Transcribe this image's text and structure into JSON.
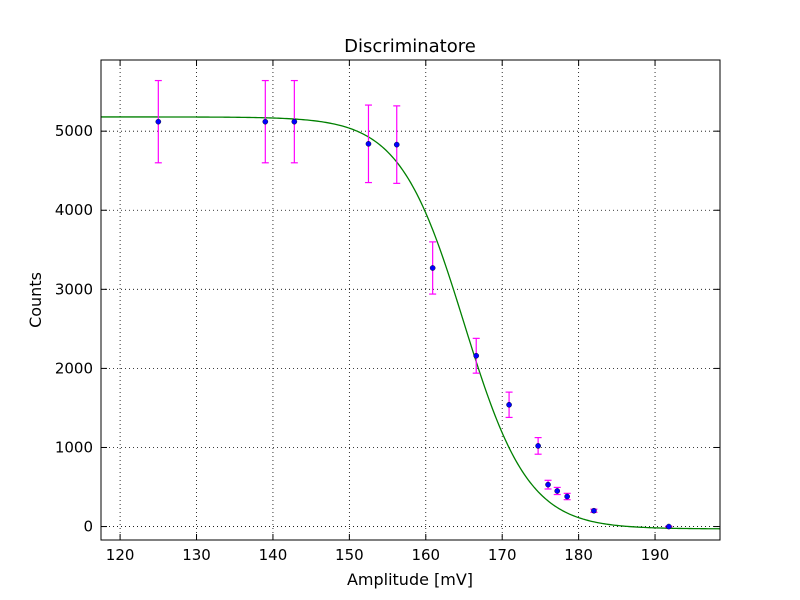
{
  "chart_data": {
    "type": "scatter",
    "title": "Discriminatore",
    "xlabel": "Amplitude [mV]",
    "ylabel": "Counts",
    "xlim": [
      117.5,
      198.5
    ],
    "ylim": [
      -170,
      5900
    ],
    "xticks": [
      120,
      130,
      140,
      150,
      160,
      170,
      180,
      190
    ],
    "yticks": [
      0,
      1000,
      2000,
      3000,
      4000,
      5000
    ],
    "grid": true,
    "colors": {
      "points": "#0000ff",
      "errorbars": "#ff00ff",
      "fit": "#008000"
    },
    "points": [
      {
        "x": 125.0,
        "y": 5120,
        "err": 520
      },
      {
        "x": 139.0,
        "y": 5120,
        "err": 520
      },
      {
        "x": 142.8,
        "y": 5120,
        "err": 520
      },
      {
        "x": 152.5,
        "y": 4840,
        "err": 490
      },
      {
        "x": 156.2,
        "y": 4830,
        "err": 490
      },
      {
        "x": 160.9,
        "y": 3270,
        "err": 330
      },
      {
        "x": 166.6,
        "y": 2160,
        "err": 220
      },
      {
        "x": 170.9,
        "y": 1540,
        "err": 160
      },
      {
        "x": 174.7,
        "y": 1020,
        "err": 105
      },
      {
        "x": 176.0,
        "y": 530,
        "err": 55
      },
      {
        "x": 177.2,
        "y": 450,
        "err": 45
      },
      {
        "x": 178.5,
        "y": 380,
        "err": 40
      },
      {
        "x": 182.0,
        "y": 200,
        "err": 20
      },
      {
        "x": 191.8,
        "y": 0,
        "err": 5
      }
    ],
    "fit": {
      "model": "logistic",
      "A": 5210,
      "offset": -30,
      "x0": 165.0,
      "width": 4.2
    }
  }
}
